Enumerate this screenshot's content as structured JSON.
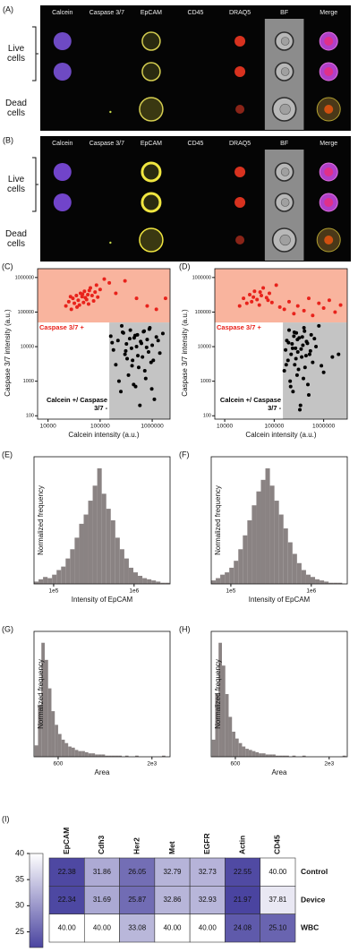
{
  "image_panels": [
    {
      "label": "(A)",
      "columns": [
        "Calcein",
        "Caspase 3/7",
        "EpCAM",
        "CD45",
        "DRAQ5",
        "BF",
        "Merge"
      ],
      "rows": [
        "Live cells",
        "Dead cells"
      ]
    },
    {
      "label": "(B)",
      "columns": [
        "Calcein",
        "Caspase 3/7",
        "EpCAM",
        "CD45",
        "DRAQ5",
        "BF",
        "Merge"
      ],
      "rows": [
        "Live cells",
        "Dead cells"
      ]
    }
  ],
  "chart_data": [
    {
      "type": "scatter",
      "panel_label": "(C)",
      "x_label": "Calcein intensity (a.u.)",
      "y_label": "Caspase 3/7 intensity (a.u.)",
      "xscale": "log",
      "yscale": "log",
      "xlim": [
        6300,
        2200000
      ],
      "ylim": [
        80,
        1800000
      ],
      "xticks": [
        10000,
        100000,
        1000000
      ],
      "yticks": [
        100,
        1000,
        10000,
        100000,
        1000000
      ],
      "gates": {
        "caspase_min": 50000,
        "calcein_min": 150000,
        "caspase_color": "#f9b49e",
        "calcein_color": "#c4c4c4"
      },
      "series": [
        {
          "name": "Caspase 3/7 +",
          "color": "#e8221b",
          "x": [
            22000,
            25000,
            28000,
            30000,
            32000,
            35000,
            38000,
            40000,
            42000,
            45000,
            48000,
            50000,
            52000,
            55000,
            58000,
            60000,
            65000,
            70000,
            75000,
            80000,
            85000,
            90000,
            100000,
            120000,
            150000,
            200000,
            300000,
            500000,
            800000,
            1200000,
            1800000,
            27000,
            36000,
            46000,
            62000
          ],
          "values": [
            150000,
            200000,
            120000,
            250000,
            180000,
            300000,
            220000,
            160000,
            350000,
            280000,
            190000,
            400000,
            260000,
            230000,
            320000,
            170000,
            500000,
            300000,
            210000,
            380000,
            600000,
            270000,
            450000,
            900000,
            700000,
            350000,
            800000,
            250000,
            150000,
            120000,
            250000,
            280000,
            140000,
            330000,
            420000
          ]
        },
        {
          "name": "Calcein +/ Caspase 3/7 -",
          "color": "#000000",
          "x": [
            160000,
            180000,
            200000,
            220000,
            250000,
            280000,
            300000,
            320000,
            350000,
            380000,
            400000,
            420000,
            450000,
            480000,
            500000,
            520000,
            550000,
            600000,
            650000,
            700000,
            750000,
            800000,
            850000,
            900000,
            950000,
            1000000,
            1100000,
            1200000,
            1400000,
            1600000,
            170000,
            230000,
            270000,
            330000,
            370000,
            440000,
            470000,
            530000,
            580000,
            680000,
            720000,
            780000,
            880000,
            1050000,
            1300000,
            260000,
            310000,
            410000,
            620000,
            980000
          ],
          "values": [
            20000,
            8000,
            3000,
            15000,
            500,
            25000,
            6000,
            12000,
            1500,
            30000,
            9000,
            4000,
            18000,
            700,
            10000,
            22000,
            2500,
            14000,
            5000,
            28000,
            1200,
            16000,
            7000,
            35000,
            3500,
            11000,
            300,
            19000,
            6500,
            24000,
            13000,
            1000,
            26000,
            4500,
            17000,
            800,
            21000,
            5500,
            200,
            27000,
            2000,
            9500,
            32000,
            4000,
            15000,
            40000,
            7500,
            2800,
            12500,
            600
          ]
        }
      ]
    },
    {
      "type": "scatter",
      "panel_label": "(D)",
      "x_label": "Calcein intensity (a.u.)",
      "y_label": "Caspase 3/7 intensity (a.u.)",
      "xscale": "log",
      "yscale": "log",
      "xlim": [
        6300,
        3000000
      ],
      "ylim": [
        80,
        1800000
      ],
      "xticks": [
        10000,
        100000,
        1000000
      ],
      "yticks": [
        100,
        1000,
        10000,
        100000,
        1000000
      ],
      "gates": {
        "caspase_min": 50000,
        "calcein_min": 150000,
        "caspase_color": "#f9b49e",
        "calcein_color": "#c4c4c4"
      },
      "series": [
        {
          "name": "Caspase 3/7 +",
          "color": "#e8221b",
          "x": [
            20000,
            24000,
            28000,
            32000,
            35000,
            40000,
            45000,
            50000,
            55000,
            60000,
            70000,
            80000,
            90000,
            110000,
            130000,
            160000,
            200000,
            250000,
            300000,
            400000,
            500000,
            600000,
            800000,
            1000000,
            1300000,
            1700000,
            2200000,
            38000,
            52000,
            75000
          ],
          "values": [
            150000,
            250000,
            180000,
            320000,
            200000,
            400000,
            230000,
            160000,
            300000,
            500000,
            260000,
            350000,
            190000,
            600000,
            140000,
            120000,
            200000,
            90000,
            150000,
            110000,
            250000,
            80000,
            180000,
            130000,
            220000,
            100000,
            160000,
            270000,
            380000,
            220000
          ]
        },
        {
          "name": "Calcein +/ Caspase 3/7 -",
          "color": "#000000",
          "x": [
            160000,
            170000,
            180000,
            190000,
            200000,
            210000,
            220000,
            230000,
            240000,
            250000,
            260000,
            270000,
            280000,
            290000,
            300000,
            320000,
            340000,
            360000,
            380000,
            400000,
            420000,
            450000,
            480000,
            520000,
            560000,
            600000,
            700000,
            800000,
            1000000,
            1500000,
            175000,
            195000,
            215000,
            235000,
            255000,
            275000,
            295000,
            310000,
            330000,
            350000,
            370000,
            390000,
            410000,
            440000,
            470000,
            500000,
            540000,
            650000,
            900000,
            2000000
          ],
          "values": [
            2000,
            8000,
            15000,
            4000,
            30000,
            1000,
            6000,
            12000,
            500,
            20000,
            3000,
            9000,
            25000,
            1500,
            7000,
            18000,
            200,
            5000,
            11000,
            35000,
            2500,
            14000,
            800,
            6000,
            22000,
            3500,
            10000,
            40000,
            1800,
            5000,
            3000,
            13000,
            700,
            9000,
            26000,
            4500,
            16000,
            2200,
            150,
            8500,
            19000,
            1200,
            28000,
            5500,
            12500,
            400,
            7500,
            17000,
            2800,
            6000
          ]
        }
      ]
    },
    {
      "type": "histogram",
      "panel_label": "(E)",
      "x_label": "Intensity of EpCAM",
      "y_label": "Normalized frequency",
      "xscale": "log",
      "xlim": [
        57000,
        2800000
      ],
      "ylim": [
        0,
        110
      ],
      "color": "#8a8383",
      "xticks": [
        {
          "value": 100000,
          "label": "1e5"
        },
        {
          "value": 1000000,
          "label": "1e6"
        }
      ],
      "bins": [
        57000,
        64900,
        73800,
        84000,
        95600,
        108800,
        123800,
        140900,
        160300,
        182400,
        207600,
        236200,
        268800,
        305900,
        348100,
        396100,
        450800,
        513000,
        583800,
        664400,
        756100,
        860400,
        979200,
        1114300,
        1268100,
        1443100,
        1642200,
        1868800,
        2126700,
        2420200,
        2754200
      ],
      "values": [
        2,
        4,
        6,
        5,
        8,
        12,
        15,
        22,
        30,
        40,
        52,
        60,
        72,
        85,
        100,
        78,
        65,
        55,
        40,
        30,
        22,
        14,
        10,
        7,
        5,
        4,
        3,
        2,
        1,
        1
      ]
    },
    {
      "type": "histogram",
      "panel_label": "(F)",
      "x_label": "Intensity of EpCAM",
      "y_label": "Normalized frequency",
      "xscale": "log",
      "xlim": [
        57000,
        2800000
      ],
      "ylim": [
        0,
        110
      ],
      "color": "#8a8383",
      "xticks": [
        {
          "value": 100000,
          "label": "1e5"
        },
        {
          "value": 1000000,
          "label": "1e6"
        }
      ],
      "bins": [
        57000,
        64900,
        73800,
        84000,
        95600,
        108800,
        123800,
        140900,
        160300,
        182400,
        207600,
        236200,
        268800,
        305900,
        348100,
        396100,
        450800,
        513000,
        583800,
        664400,
        756100,
        860400,
        979200,
        1114300,
        1268100,
        1443100,
        1642200,
        1868800,
        2126700,
        2420200,
        2754200
      ],
      "values": [
        3,
        5,
        8,
        10,
        14,
        20,
        30,
        42,
        55,
        68,
        80,
        90,
        100,
        85,
        72,
        60,
        48,
        36,
        26,
        18,
        12,
        8,
        6,
        4,
        3,
        2,
        1,
        1,
        1,
        0
      ]
    },
    {
      "type": "histogram",
      "panel_label": "(G)",
      "x_label": "Area",
      "y_label": "Normalized frequency",
      "xscale": "linear",
      "xlim": [
        240,
        2270
      ],
      "ylim": [
        0,
        110
      ],
      "color": "#8a8383",
      "xticks": [
        600,
        {
          "value": 2000,
          "label": "2e3"
        }
      ],
      "bins": [
        250,
        300,
        350,
        400,
        450,
        500,
        550,
        600,
        650,
        700,
        750,
        800,
        850,
        900,
        950,
        1000,
        1050,
        1100,
        1150,
        1200,
        1250,
        1300,
        1350,
        1400,
        1450,
        1500,
        1550,
        1600,
        1650,
        1700,
        1750,
        1800,
        1850,
        1900,
        1950,
        2000,
        2050,
        2100,
        2150,
        2200,
        2250
      ],
      "values": [
        10,
        45,
        100,
        85,
        60,
        40,
        28,
        20,
        15,
        12,
        9,
        8,
        6,
        5,
        5,
        4,
        3,
        3,
        2,
        2,
        2,
        1,
        1,
        1,
        1,
        1,
        0,
        1,
        0,
        0,
        1,
        0,
        0,
        0,
        0,
        0,
        0,
        0,
        1,
        0
      ]
    },
    {
      "type": "histogram",
      "panel_label": "(H)",
      "x_label": "Area",
      "y_label": "Normalized frequency",
      "xscale": "linear",
      "xlim": [
        240,
        2270
      ],
      "ylim": [
        0,
        110
      ],
      "color": "#8a8383",
      "xticks": [
        600,
        {
          "value": 2000,
          "label": "2e3"
        }
      ],
      "bins": [
        250,
        300,
        350,
        400,
        450,
        500,
        550,
        600,
        650,
        700,
        750,
        800,
        850,
        900,
        950,
        1000,
        1050,
        1100,
        1150,
        1200,
        1250,
        1300,
        1350,
        1400,
        1450,
        1500,
        1550,
        1600,
        1650,
        1700,
        1750,
        1800,
        1850,
        1900,
        1950,
        2000,
        2050,
        2100,
        2150,
        2200,
        2250
      ],
      "values": [
        15,
        55,
        100,
        80,
        55,
        35,
        22,
        16,
        12,
        9,
        7,
        6,
        5,
        4,
        3,
        3,
        2,
        2,
        2,
        1,
        1,
        1,
        1,
        0,
        1,
        0,
        0,
        1,
        0,
        0,
        0,
        0,
        0,
        0,
        0,
        0,
        0,
        0,
        0,
        1
      ]
    },
    {
      "type": "heatmap",
      "panel_label": "(I)",
      "columns": [
        "EpCAM",
        "Cdh3",
        "Her2",
        "Met",
        "EGFR",
        "Actin",
        "CD45"
      ],
      "rows": [
        "Control",
        "Device",
        "WBC"
      ],
      "values": [
        [
          22.38,
          31.86,
          26.05,
          32.79,
          32.73,
          22.55,
          40
        ],
        [
          22.34,
          31.69,
          25.87,
          32.86,
          32.93,
          21.97,
          37.81
        ],
        [
          40,
          40,
          33.08,
          40,
          40,
          24.08,
          25.1
        ]
      ],
      "value_labels": [
        [
          "22.38",
          "31.86",
          "26.05",
          "32.79",
          "32.73",
          "22.55",
          "40.00"
        ],
        [
          "22.34",
          "31.69",
          "25.87",
          "32.86",
          "32.93",
          "21.97",
          "37.81"
        ],
        [
          "40.00",
          "40.00",
          "33.08",
          "40.00",
          "40.00",
          "24.08",
          "25.10"
        ]
      ],
      "zlim": [
        22,
        40
      ],
      "zticks": [
        25,
        30,
        35,
        40
      ],
      "colormap": [
        "#4a44a0",
        "#ffffff"
      ]
    }
  ]
}
